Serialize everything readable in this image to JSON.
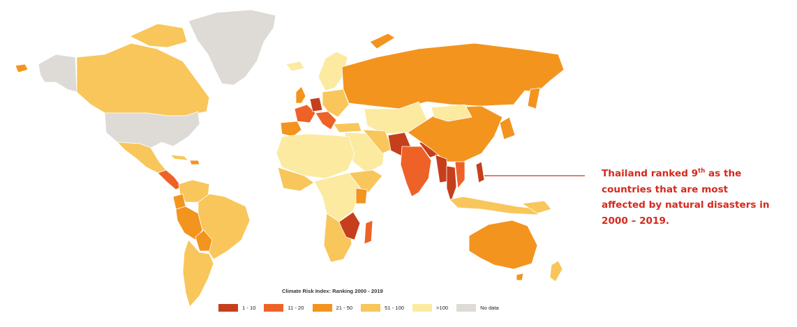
{
  "callout": {
    "line1_a": "Thailand ranked 9",
    "line1_sup": "th",
    "line1_b": " as the",
    "line2": "countries that are most",
    "line3": "affected by natural disasters in",
    "line4": "2000 – 2019."
  },
  "legend": {
    "title": "Climate Risk Index: Ranking 2000 - 2019",
    "items": [
      {
        "label": "1 - 10",
        "color": "#c63f1c"
      },
      {
        "label": "11 - 20",
        "color": "#ee6227"
      },
      {
        "label": "21 - 50",
        "color": "#f3941f"
      },
      {
        "label": "51 - 100",
        "color": "#f8c65a"
      },
      {
        "label": ">100",
        "color": "#fbeaa0"
      },
      {
        "label": "No data",
        "color": "#dedbd6"
      }
    ]
  },
  "colors": {
    "cat1": "#c63f1c",
    "cat2": "#ee6227",
    "cat3": "#f3941f",
    "cat4": "#f8c65a",
    "cat5": "#fbeaa0",
    "nodata": "#dedbd6",
    "callout": "#d42a1e"
  }
}
